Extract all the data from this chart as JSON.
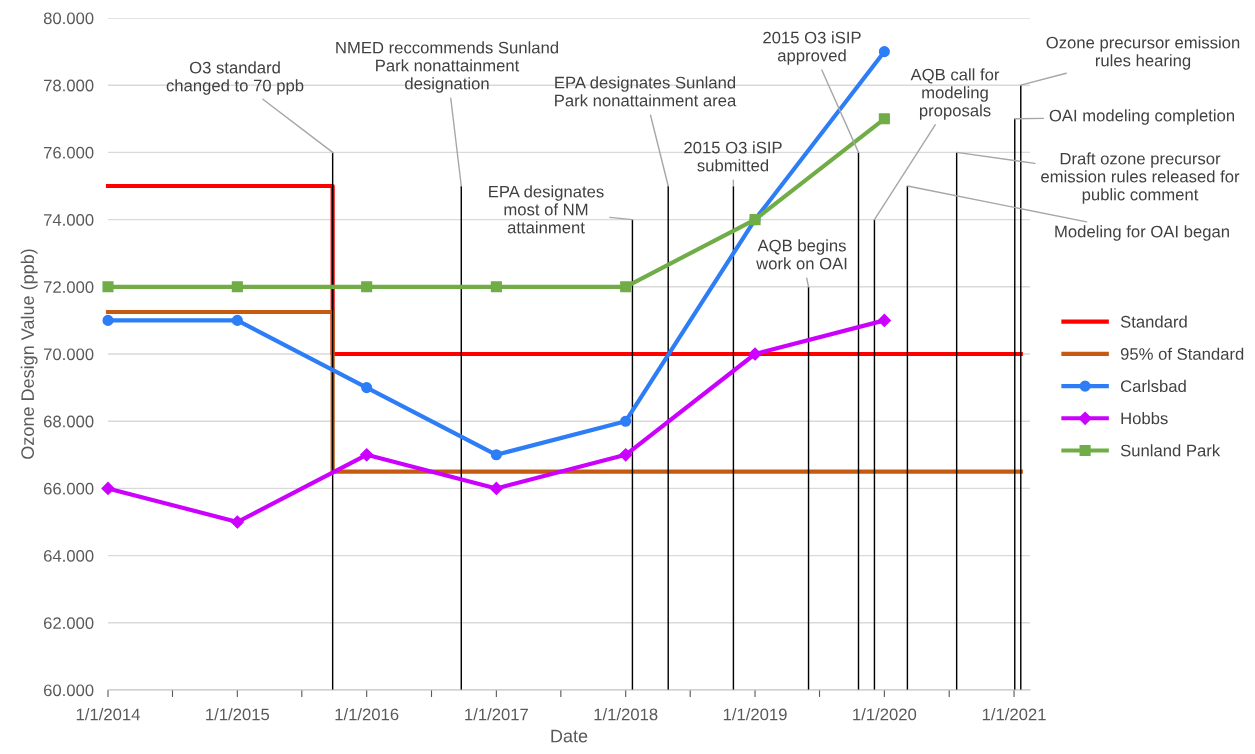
{
  "chart_data": {
    "type": "line",
    "xlabel": "Date",
    "ylabel": "Ozone Design Value (ppb)",
    "xlim": [
      "2014-01-01",
      "2021-02-15"
    ],
    "ylim": [
      60,
      80
    ],
    "xticks": [
      {
        "value": "2014-01-01",
        "label": "1/1/2014"
      },
      {
        "value": "2014-07-02",
        "label": null
      },
      {
        "value": "2015-01-01",
        "label": "1/1/2015"
      },
      {
        "value": "2015-07-02",
        "label": null
      },
      {
        "value": "2016-01-01",
        "label": "1/1/2016"
      },
      {
        "value": "2016-07-02",
        "label": null
      },
      {
        "value": "2017-01-01",
        "label": "1/1/2017"
      },
      {
        "value": "2017-07-02",
        "label": null
      },
      {
        "value": "2018-01-01",
        "label": "1/1/2018"
      },
      {
        "value": "2018-07-02",
        "label": null
      },
      {
        "value": "2019-01-01",
        "label": "1/1/2019"
      },
      {
        "value": "2019-07-02",
        "label": null
      },
      {
        "value": "2020-01-01",
        "label": "1/1/2020"
      },
      {
        "value": "2020-07-02",
        "label": null
      },
      {
        "value": "2021-01-01",
        "label": "1/1/2021"
      }
    ],
    "yticks": [
      {
        "value": 60,
        "label": "60.000"
      },
      {
        "value": 62,
        "label": "62.000"
      },
      {
        "value": 64,
        "label": "64.000"
      },
      {
        "value": 66,
        "label": "66.000"
      },
      {
        "value": 68,
        "label": "68.000"
      },
      {
        "value": 70,
        "label": "70.000"
      },
      {
        "value": 72,
        "label": "72.000"
      },
      {
        "value": 74,
        "label": "74.000"
      },
      {
        "value": 76,
        "label": "76.000"
      },
      {
        "value": 78,
        "label": "78.000"
      },
      {
        "value": 80,
        "label": "80.000"
      }
    ],
    "grid": "y",
    "legend": "right",
    "series": [
      {
        "type": "bar",
        "color": "#000000",
        "x": [
          "2015-09-27",
          "2016-09-24",
          "2018-01-20",
          "2018-05-01",
          "2018-11-01",
          "2019-06-01",
          "2019-10-20",
          "2019-12-04",
          "2020-03-06",
          "2020-07-23",
          "2021-01-03",
          "2021-01-20"
        ],
        "values": [
          76,
          75,
          74,
          75,
          75,
          72,
          76,
          74,
          75,
          76,
          77,
          78
        ]
      },
      {
        "name": "Standard",
        "color": "#ff0000",
        "marker": "none",
        "x": [
          "2014-01-01",
          "2015-09-27",
          "2015-09-27",
          "2021-01-20"
        ],
        "values": [
          75,
          75,
          70,
          70
        ]
      },
      {
        "name": "95% of Standard",
        "color": "#c55a11",
        "marker": "none",
        "x": [
          "2014-01-01",
          "2015-09-27",
          "2015-09-27",
          "2021-01-20"
        ],
        "values": [
          71.25,
          71.25,
          66.5,
          66.5
        ]
      },
      {
        "name": "Carlsbad",
        "color": "#2d7df6",
        "marker": "circle",
        "x": [
          "2014-01-01",
          "2015-01-01",
          "2016-01-01",
          "2017-01-01",
          "2018-01-01",
          "2019-01-01",
          "2020-01-01"
        ],
        "values": [
          71,
          71,
          69,
          67,
          68,
          74,
          79
        ]
      },
      {
        "name": "Hobbs",
        "color": "#cc00ff",
        "marker": "diamond",
        "x": [
          "2014-01-01",
          "2015-01-01",
          "2016-01-01",
          "2017-01-01",
          "2018-01-01",
          "2019-01-01",
          "2020-01-01"
        ],
        "values": [
          66,
          65,
          67,
          66,
          67,
          70,
          71
        ]
      },
      {
        "name": "Sunland Park",
        "color": "#70ad47",
        "marker": "square",
        "x": [
          "2014-01-01",
          "2015-01-01",
          "2016-01-01",
          "2017-01-01",
          "2018-01-01",
          "2019-01-01",
          "2020-01-01"
        ],
        "values": [
          72,
          72,
          72,
          72,
          72,
          74,
          77
        ]
      }
    ],
    "annotations": [
      {
        "text": "O3 standard\nchanged to 70 ppb",
        "x": "2015-09-27",
        "y": 76
      },
      {
        "text": "NMED reccommends Sunland\nPark nonattainment\ndesignation",
        "x": "2016-09-24",
        "y": 75
      },
      {
        "text": "EPA designates\nmost of NM\nattainment",
        "x": "2018-01-20",
        "y": 74
      },
      {
        "text": "EPA designates Sunland\nPark nonattainment area",
        "x": "2018-05-01",
        "y": 75
      },
      {
        "text": "2015 O3 iSIP\nsubmitted",
        "x": "2018-11-01",
        "y": 75
      },
      {
        "text": "AQB begins\nwork on OAI",
        "x": "2019-06-01",
        "y": 72
      },
      {
        "text": "2015 O3 iSIP\napproved",
        "x": "2019-10-20",
        "y": 76
      },
      {
        "text": "AQB call for\nmodeling\nproposals",
        "x": "2019-12-04",
        "y": 74
      },
      {
        "text": "Modeling for OAI began",
        "x": "2020-03-06",
        "y": 75
      },
      {
        "text": "Draft ozone precursor\nemission rules released for\npublic comment",
        "x": "2020-07-23",
        "y": 76
      },
      {
        "text": "OAI modeling completion",
        "x": "2021-01-03",
        "y": 77
      },
      {
        "text": "Ozone precursor emission\nrules hearing",
        "x": "2021-01-20",
        "y": 78
      }
    ]
  }
}
